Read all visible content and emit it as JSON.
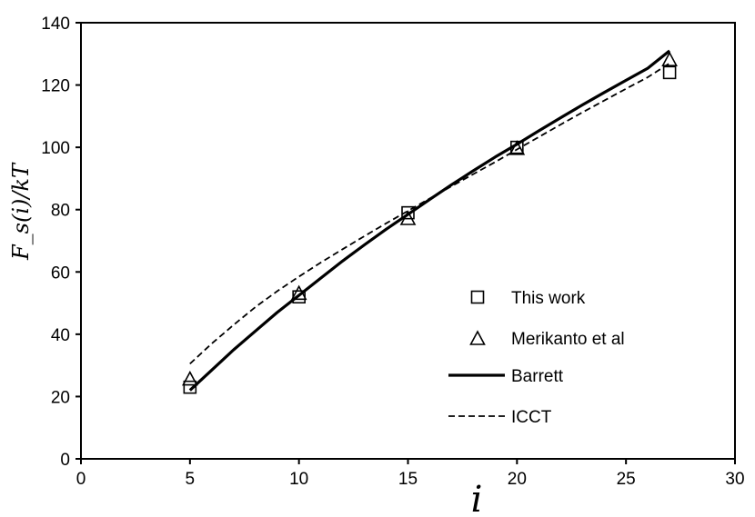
{
  "chart_data": {
    "type": "line",
    "title": "",
    "xlabel": "i",
    "ylabel": "F_s(i)/kT",
    "xlim": [
      0,
      30
    ],
    "ylim": [
      0,
      140
    ],
    "xticks": [
      0,
      5,
      10,
      15,
      20,
      25,
      30
    ],
    "yticks": [
      0,
      20,
      40,
      60,
      80,
      100,
      120,
      140
    ],
    "grid": false,
    "legend_position": "right",
    "series": [
      {
        "name": "This work",
        "style": "square-markers",
        "x": [
          5,
          10,
          15,
          20,
          27
        ],
        "y": [
          23,
          52,
          79,
          100,
          124
        ]
      },
      {
        "name": "Merikanto et al",
        "style": "triangle-markers",
        "x": [
          5,
          10,
          15,
          20,
          27
        ],
        "y": [
          25.5,
          53,
          77,
          99.5,
          128
        ]
      },
      {
        "name": "Barrett",
        "style": "solid-line",
        "x": [
          5,
          6,
          7,
          8,
          9,
          10,
          11,
          12,
          13,
          14,
          15,
          16,
          17,
          18,
          19,
          20,
          21,
          22,
          23,
          24,
          25,
          26,
          27
        ],
        "y": [
          22,
          28.5,
          35,
          41,
          47,
          52.5,
          58,
          63.5,
          68.7,
          73.7,
          78.5,
          83.3,
          88,
          92.5,
          96.9,
          101,
          105.3,
          109.5,
          113.6,
          117.6,
          121.5,
          125.4,
          131
        ]
      },
      {
        "name": "ICCT",
        "style": "dashed-line",
        "x": [
          5,
          6,
          7,
          8,
          9,
          10,
          11,
          12,
          13,
          14,
          15,
          16,
          17,
          18,
          19,
          20,
          21,
          22,
          23,
          24,
          25,
          26,
          27
        ],
        "y": [
          30.5,
          37,
          43,
          48.7,
          53.8,
          58.5,
          63,
          67.3,
          71.5,
          75.6,
          79.6,
          83.6,
          87.5,
          91.4,
          95.3,
          99.3,
          103.3,
          107.3,
          111.2,
          115,
          118.8,
          122.5,
          127
        ]
      }
    ]
  }
}
